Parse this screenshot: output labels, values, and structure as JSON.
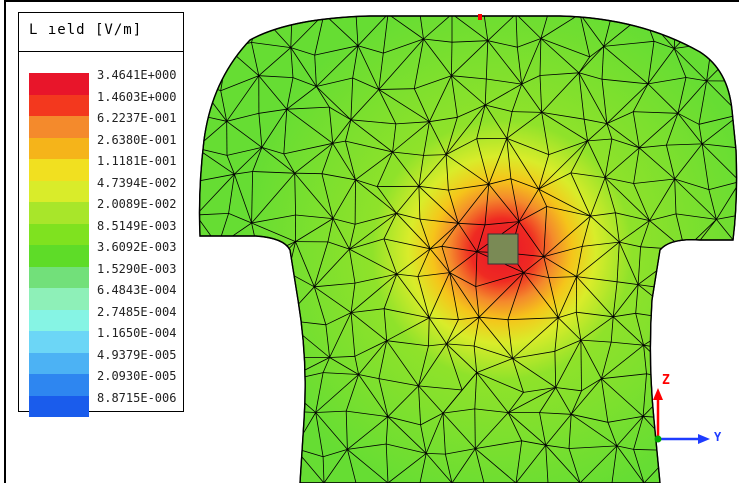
{
  "legend": {
    "title": "L ıeld [V/m]",
    "entries": [
      {
        "label": "3.4641E+000",
        "color": "#e8152a"
      },
      {
        "label": "1.4603E+000",
        "color": "#f3381e"
      },
      {
        "label": "6.2237E-001",
        "color": "#f48a2c"
      },
      {
        "label": "2.6380E-001",
        "color": "#f5b41a"
      },
      {
        "label": "1.1181E-001",
        "color": "#f1e020"
      },
      {
        "label": "4.7394E-002",
        "color": "#d9ec2a"
      },
      {
        "label": "2.0089E-002",
        "color": "#a8e62a"
      },
      {
        "label": "8.5149E-003",
        "color": "#7fe21f"
      },
      {
        "label": "3.6092E-003",
        "color": "#5edc28"
      },
      {
        "label": "1.5290E-003",
        "color": "#72e07a"
      },
      {
        "label": "6.4843E-004",
        "color": "#8ef0b8"
      },
      {
        "label": "2.7485E-004",
        "color": "#86f4e4"
      },
      {
        "label": "1.1650E-004",
        "color": "#6cd6f6"
      },
      {
        "label": "4.9379E-005",
        "color": "#4cb2f4"
      },
      {
        "label": "2.0930E-005",
        "color": "#2e86f0"
      },
      {
        "label": "8.8715E-006",
        "color": "#1a5cec"
      }
    ]
  },
  "axes": {
    "z_label": "Z",
    "y_label": "Y",
    "z_color": "#ff0000",
    "y_color": "#1e3cff",
    "x_color": "#00aa00"
  },
  "colors": {
    "torso_base": "#66dd33",
    "hotspot_core": "#e8152a",
    "mesh_lines": "#000000"
  }
}
